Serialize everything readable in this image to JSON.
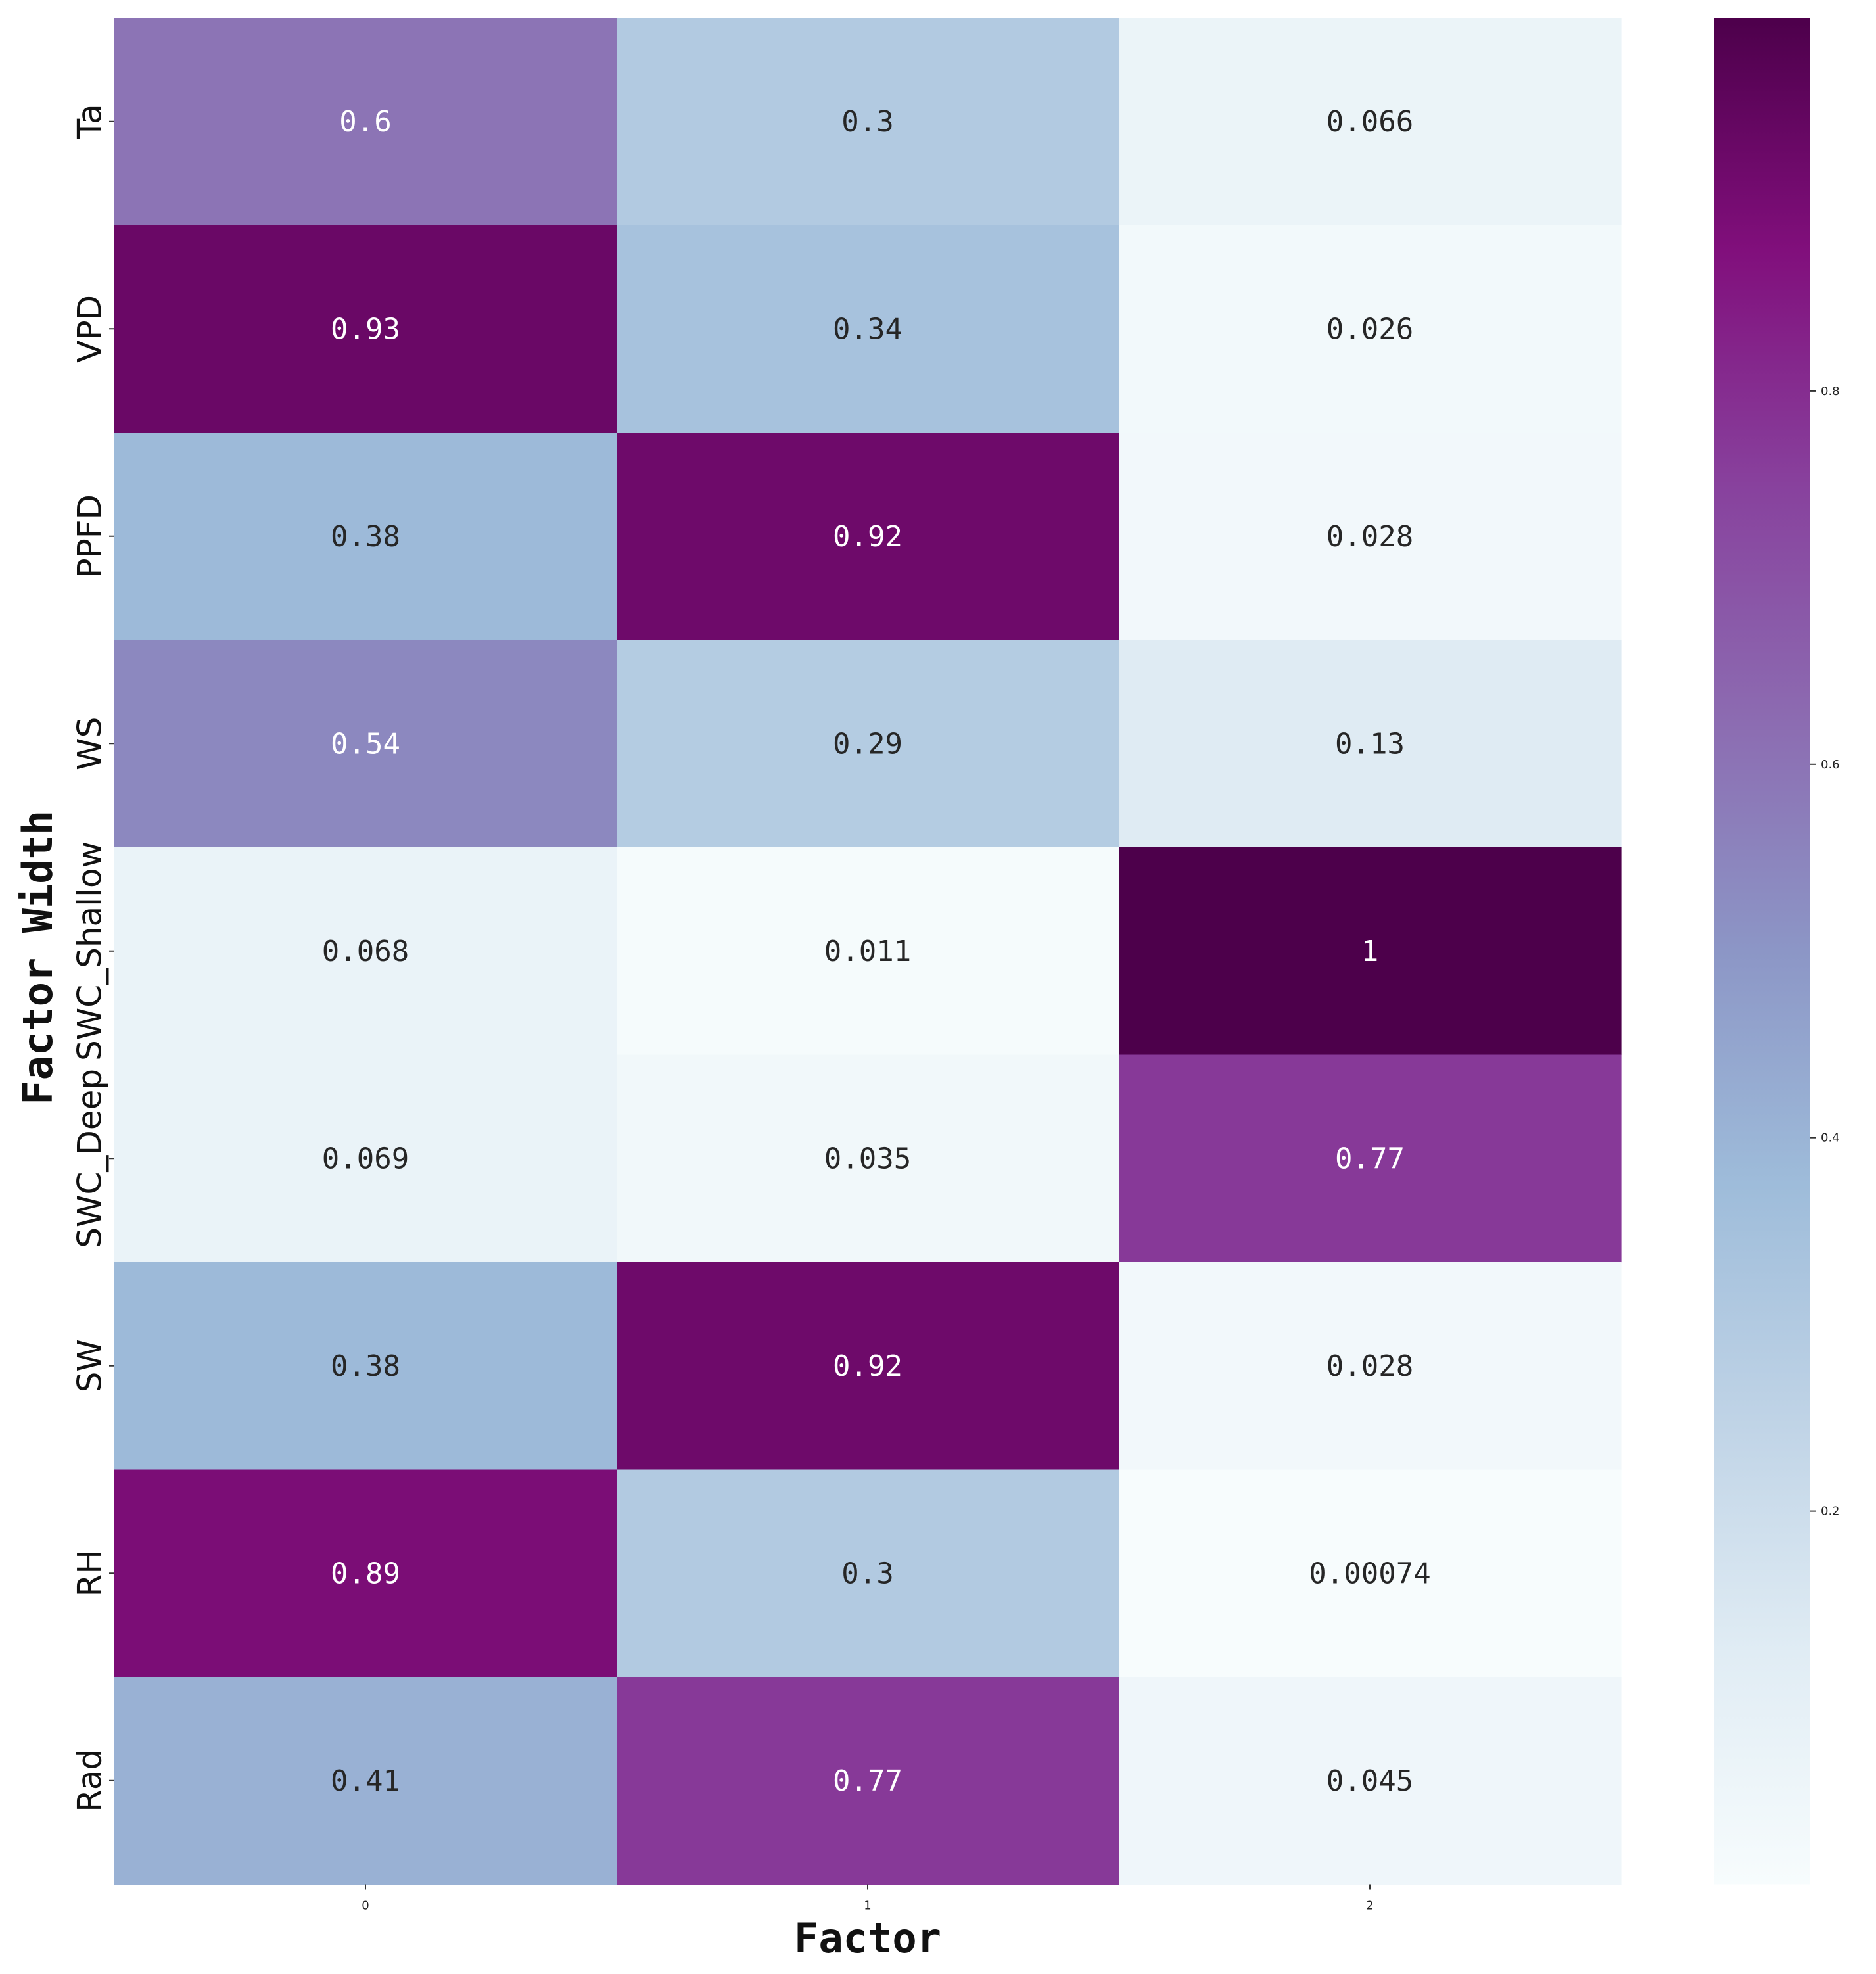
{
  "chart_data": {
    "type": "heatmap",
    "title": "",
    "xlabel": "Factor",
    "ylabel": "Factor Width",
    "columns": [
      "0",
      "1",
      "2"
    ],
    "rows": [
      "Ta",
      "VPD",
      "PPFD",
      "WS",
      "SWC_Shallow",
      "SWC_Deep",
      "SW",
      "RH",
      "Rad"
    ],
    "values": [
      [
        0.6,
        0.3,
        0.066
      ],
      [
        0.93,
        0.34,
        0.026
      ],
      [
        0.38,
        0.92,
        0.028
      ],
      [
        0.54,
        0.29,
        0.13
      ],
      [
        0.068,
        0.011,
        1
      ],
      [
        0.069,
        0.035,
        0.77
      ],
      [
        0.38,
        0.92,
        0.028
      ],
      [
        0.89,
        0.3,
        0.00074
      ],
      [
        0.41,
        0.77,
        0.045
      ]
    ],
    "cell_labels": [
      [
        "0.6",
        "0.3",
        "0.066"
      ],
      [
        "0.93",
        "0.34",
        "0.026"
      ],
      [
        "0.38",
        "0.92",
        "0.028"
      ],
      [
        "0.54",
        "0.29",
        "0.13"
      ],
      [
        "0.068",
        "0.011",
        "1"
      ],
      [
        "0.069",
        "0.035",
        "0.77"
      ],
      [
        "0.38",
        "0.92",
        "0.028"
      ],
      [
        "0.89",
        "0.3",
        "0.00074"
      ],
      [
        "0.41",
        "0.77",
        "0.045"
      ]
    ],
    "colormap": "BuPu",
    "vmin": 0,
    "vmax": 1,
    "colorbar": {
      "ticks": [
        0.2,
        0.4,
        0.6,
        0.8
      ],
      "tick_labels": [
        "0.2",
        "0.4",
        "0.6",
        "0.8"
      ],
      "placement": "right"
    },
    "colorscale": [
      "#f7fcfd",
      "#e0ecf4",
      "#bfd3e6",
      "#9ebcda",
      "#8c96c6",
      "#8c6bb1",
      "#88419d",
      "#810f7c",
      "#4d004b"
    ]
  }
}
